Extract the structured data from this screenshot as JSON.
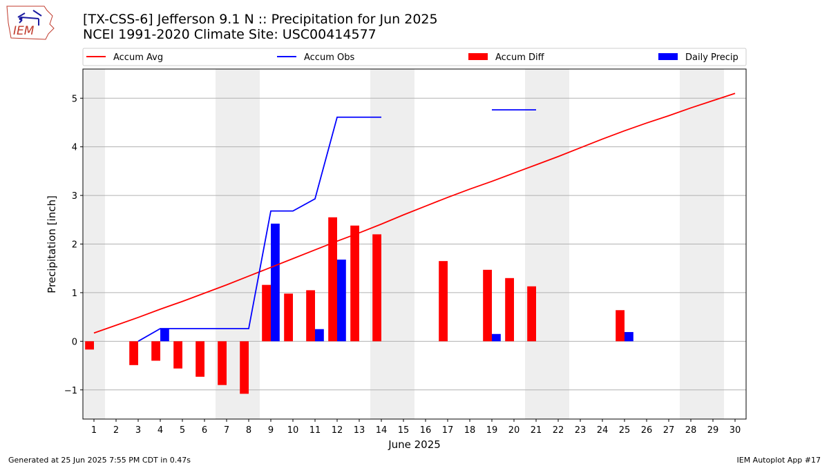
{
  "header": {
    "title_line1": "[TX-CSS-6] Jefferson 9.1 N :: Precipitation for Jun 2025",
    "title_line2": "NCEI 1991-2020 Climate Site: USC00414577"
  },
  "logo": {
    "text": "IEM"
  },
  "footer": {
    "left": "Generated at 25 Jun 2025 7:55 PM CDT in 0.47s",
    "right": "IEM Autoplot App #17"
  },
  "colors": {
    "avg": "#ff0000",
    "obs": "#0000ff",
    "diff": "#ff0000",
    "daily": "#0000ff",
    "weekend": "#eeeeee",
    "grid": "#b0b0b0"
  },
  "chart_data": {
    "type": "bar",
    "xlabel": "June 2025",
    "ylabel": "Precipitation [inch]",
    "xlim": [
      0.5,
      30.5
    ],
    "ylim": [
      -1.6,
      5.6
    ],
    "yticks": [
      -1,
      0,
      1,
      2,
      3,
      4,
      5
    ],
    "ytick_labels": [
      "−1",
      "0",
      "1",
      "2",
      "3",
      "4",
      "5"
    ],
    "xticks": [
      1,
      2,
      3,
      4,
      5,
      6,
      7,
      8,
      9,
      10,
      11,
      12,
      13,
      14,
      15,
      16,
      17,
      18,
      19,
      20,
      21,
      22,
      23,
      24,
      25,
      26,
      27,
      28,
      29,
      30
    ],
    "grid": "horizontal",
    "legend_placement": "top",
    "legend": [
      "Accum Avg",
      "Accum Obs",
      "Accum Diff",
      "Daily Precip"
    ],
    "weekend_spans": [
      [
        0.5,
        1.5
      ],
      [
        6.5,
        8.5
      ],
      [
        13.5,
        15.5
      ],
      [
        20.5,
        22.5
      ],
      [
        27.5,
        29.5
      ]
    ],
    "accum_avg": {
      "name": "Accum Avg",
      "x": [
        1,
        2,
        3,
        4,
        5,
        6,
        7,
        8,
        9,
        10,
        11,
        12,
        13,
        14,
        15,
        16,
        17,
        18,
        19,
        20,
        21,
        22,
        23,
        24,
        25,
        26,
        27,
        28,
        29,
        30
      ],
      "values": [
        0.17,
        0.33,
        0.49,
        0.66,
        0.82,
        0.99,
        1.16,
        1.34,
        1.52,
        1.7,
        1.88,
        2.06,
        2.23,
        2.41,
        2.6,
        2.78,
        2.96,
        3.13,
        3.29,
        3.46,
        3.63,
        3.8,
        3.98,
        4.16,
        4.33,
        4.49,
        4.64,
        4.8,
        4.95,
        5.1
      ]
    },
    "accum_obs": {
      "name": "Accum Obs",
      "segments": [
        {
          "x": [
            3,
            4,
            5,
            6,
            7,
            8,
            9,
            10,
            11,
            12,
            13,
            14
          ],
          "values": [
            0.0,
            0.26,
            0.26,
            0.26,
            0.26,
            0.26,
            2.68,
            2.68,
            2.93,
            4.61,
            4.61,
            4.61
          ]
        },
        {
          "x": [
            19,
            20,
            21
          ],
          "values": [
            4.76,
            4.76,
            4.76
          ]
        }
      ]
    },
    "accum_diff": {
      "name": "Accum Diff",
      "x": [
        1,
        3,
        4,
        5,
        6,
        7,
        8,
        9,
        10,
        11,
        12,
        13,
        14,
        17,
        19,
        20,
        21,
        25
      ],
      "values": [
        -0.17,
        -0.49,
        -0.4,
        -0.56,
        -0.73,
        -0.9,
        -1.08,
        1.16,
        0.98,
        1.05,
        2.55,
        2.38,
        2.2,
        1.65,
        1.47,
        1.3,
        1.13,
        0.64
      ]
    },
    "daily_precip": {
      "name": "Daily Precip",
      "x": [
        4,
        9,
        11,
        12,
        19,
        25
      ],
      "values": [
        0.26,
        2.42,
        0.25,
        1.68,
        0.15,
        0.19
      ]
    }
  }
}
